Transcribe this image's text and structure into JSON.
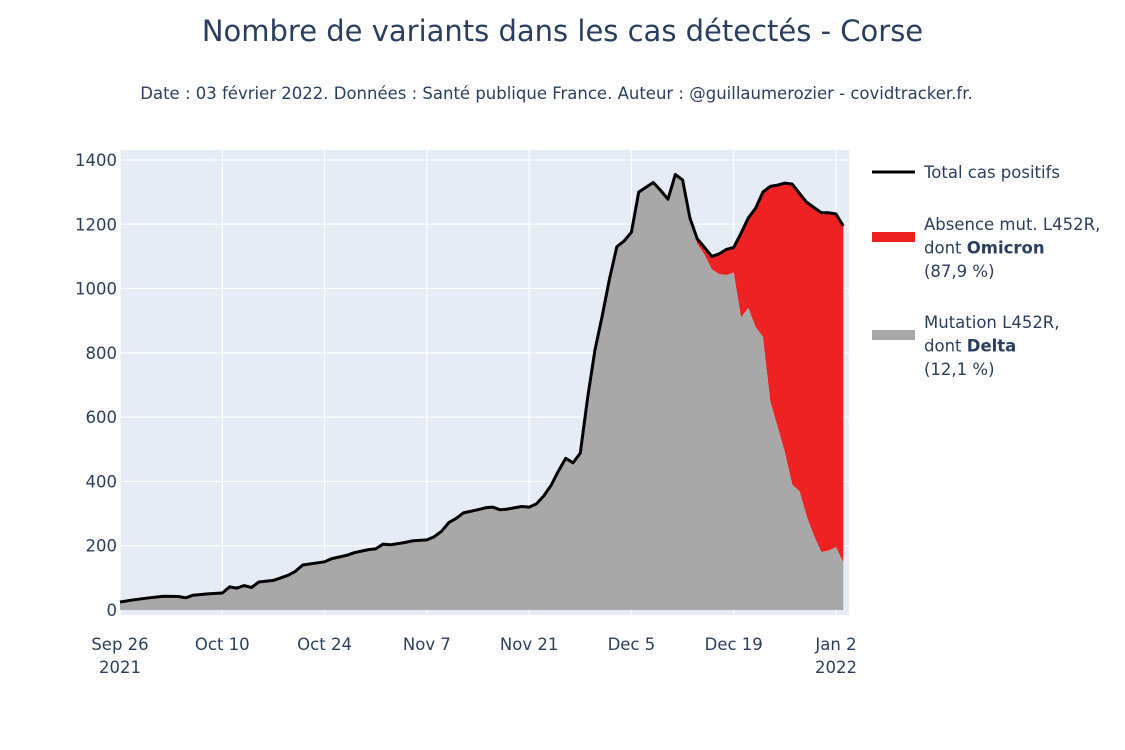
{
  "chart_data": {
    "type": "area",
    "title": "Nombre de variants dans les cas détectés - Corse",
    "subtitle": "Date : 03 février 2022. Données : Santé publique France. Auteur : @guillaumerozier - covidtracker.fr.",
    "xlabel": "",
    "ylabel": "",
    "ylim": [
      0,
      1400
    ],
    "yticks": [
      0,
      200,
      400,
      600,
      800,
      1000,
      1200,
      1400
    ],
    "xlim": [
      "2021-09-26",
      "2022-01-02"
    ],
    "xticks": [
      {
        "date": "2021-09-26",
        "label": "Sep 26",
        "year": "2021"
      },
      {
        "date": "2021-10-10",
        "label": "Oct 10",
        "year": ""
      },
      {
        "date": "2021-10-24",
        "label": "Oct 24",
        "year": ""
      },
      {
        "date": "2021-11-07",
        "label": "Nov 7",
        "year": ""
      },
      {
        "date": "2021-11-21",
        "label": "Nov 21",
        "year": ""
      },
      {
        "date": "2021-12-05",
        "label": "Dec 5",
        "year": ""
      },
      {
        "date": "2021-12-19",
        "label": "Dec 19",
        "year": ""
      },
      {
        "date": "2022-01-02",
        "label": "Jan 2",
        "year": "2022"
      }
    ],
    "grid": true,
    "legend_position": "right",
    "colors": {
      "plot_bg": "#e5ecf6",
      "grid": "#ffffff",
      "total": "#000000",
      "omicron": "#ee2222",
      "delta": "#a8a8a8"
    },
    "legend": [
      {
        "kind": "line",
        "color": "#000000",
        "lines": [
          [
            {
              "text": "Total cas positifs",
              "bold": false
            }
          ]
        ]
      },
      {
        "kind": "area",
        "color": "#ee2222",
        "lines": [
          [
            {
              "text": "Absence mut. L452R,",
              "bold": false
            }
          ],
          [
            {
              "text": "dont ",
              "bold": false
            },
            {
              "text": "Omicron",
              "bold": true
            }
          ],
          [
            {
              "text": " (87,9 %)",
              "bold": false
            }
          ]
        ]
      },
      {
        "kind": "area",
        "color": "#a8a8a8",
        "lines": [
          [
            {
              "text": "Mutation L452R,",
              "bold": false
            }
          ],
          [
            {
              "text": "dont ",
              "bold": false
            },
            {
              "text": "Delta",
              "bold": true
            }
          ],
          [
            {
              "text": " (12,1 %)",
              "bold": false
            }
          ]
        ]
      }
    ],
    "series": [
      {
        "name": "Total cas positifs",
        "points": [
          [
            "2021-09-26",
            25
          ],
          [
            "2021-09-28",
            32
          ],
          [
            "2021-09-30",
            38
          ],
          [
            "2021-10-02",
            43
          ],
          [
            "2021-10-04",
            42
          ],
          [
            "2021-10-05",
            38
          ],
          [
            "2021-10-06",
            46
          ],
          [
            "2021-10-08",
            50
          ],
          [
            "2021-10-10",
            53
          ],
          [
            "2021-10-11",
            72
          ],
          [
            "2021-10-12",
            68
          ],
          [
            "2021-10-13",
            76
          ],
          [
            "2021-10-14",
            70
          ],
          [
            "2021-10-15",
            87
          ],
          [
            "2021-10-17",
            92
          ],
          [
            "2021-10-19",
            108
          ],
          [
            "2021-10-20",
            120
          ],
          [
            "2021-10-21",
            140
          ],
          [
            "2021-10-24",
            150
          ],
          [
            "2021-10-25",
            160
          ],
          [
            "2021-10-27",
            170
          ],
          [
            "2021-10-28",
            178
          ],
          [
            "2021-10-30",
            188
          ],
          [
            "2021-10-31",
            190
          ],
          [
            "2021-11-01",
            205
          ],
          [
            "2021-11-02",
            203
          ],
          [
            "2021-11-04",
            210
          ],
          [
            "2021-11-05",
            215
          ],
          [
            "2021-11-07",
            218
          ],
          [
            "2021-11-08",
            228
          ],
          [
            "2021-11-09",
            245
          ],
          [
            "2021-11-10",
            272
          ],
          [
            "2021-11-11",
            285
          ],
          [
            "2021-11-12",
            302
          ],
          [
            "2021-11-14",
            312
          ],
          [
            "2021-11-15",
            318
          ],
          [
            "2021-11-16",
            320
          ],
          [
            "2021-11-17",
            312
          ],
          [
            "2021-11-18",
            314
          ],
          [
            "2021-11-20",
            322
          ],
          [
            "2021-11-21",
            320
          ],
          [
            "2021-11-22",
            330
          ],
          [
            "2021-11-23",
            355
          ],
          [
            "2021-11-24",
            388
          ],
          [
            "2021-11-25",
            432
          ],
          [
            "2021-11-26",
            472
          ],
          [
            "2021-11-27",
            458
          ],
          [
            "2021-11-28",
            488
          ],
          [
            "2021-11-29",
            660
          ],
          [
            "2021-11-30",
            808
          ],
          [
            "2021-12-01",
            915
          ],
          [
            "2021-12-02",
            1030
          ],
          [
            "2021-12-03",
            1130
          ],
          [
            "2021-12-04",
            1148
          ],
          [
            "2021-12-05",
            1175
          ],
          [
            "2021-12-06",
            1300
          ],
          [
            "2021-12-07",
            1315
          ],
          [
            "2021-12-08",
            1330
          ],
          [
            "2021-12-09",
            1305
          ],
          [
            "2021-12-10",
            1278
          ],
          [
            "2021-12-11",
            1355
          ],
          [
            "2021-12-12",
            1338
          ],
          [
            "2021-12-13",
            1220
          ],
          [
            "2021-12-14",
            1155
          ],
          [
            "2021-12-15",
            1128
          ],
          [
            "2021-12-16",
            1100
          ],
          [
            "2021-12-17",
            1108
          ],
          [
            "2021-12-18",
            1122
          ],
          [
            "2021-12-19",
            1128
          ],
          [
            "2021-12-20",
            1172
          ],
          [
            "2021-12-21",
            1220
          ],
          [
            "2021-12-22",
            1250
          ],
          [
            "2021-12-23",
            1300
          ],
          [
            "2021-12-24",
            1318
          ],
          [
            "2021-12-25",
            1322
          ],
          [
            "2021-12-26",
            1328
          ],
          [
            "2021-12-27",
            1325
          ],
          [
            "2021-12-28",
            1296
          ],
          [
            "2021-12-29",
            1268
          ],
          [
            "2021-12-30",
            1252
          ],
          [
            "2021-12-31",
            1236
          ],
          [
            "2022-01-01",
            1236
          ],
          [
            "2022-01-02",
            1232
          ],
          [
            "2022-01-03",
            1195
          ]
        ]
      },
      {
        "name": "Mutation L452R, dont Delta (12,1 %)",
        "points": [
          [
            "2021-12-13",
            1210
          ],
          [
            "2021-12-14",
            1140
          ],
          [
            "2021-12-15",
            1105
          ],
          [
            "2021-12-16",
            1060
          ],
          [
            "2021-12-17",
            1045
          ],
          [
            "2021-12-18",
            1042
          ],
          [
            "2021-12-19",
            1050
          ],
          [
            "2021-12-20",
            910
          ],
          [
            "2021-12-21",
            940
          ],
          [
            "2021-12-22",
            880
          ],
          [
            "2021-12-23",
            850
          ],
          [
            "2021-12-24",
            650
          ],
          [
            "2021-12-25",
            570
          ],
          [
            "2021-12-26",
            490
          ],
          [
            "2021-12-27",
            390
          ],
          [
            "2021-12-28",
            370
          ],
          [
            "2021-12-29",
            290
          ],
          [
            "2021-12-30",
            230
          ],
          [
            "2021-12-31",
            180
          ],
          [
            "2022-01-01",
            185
          ],
          [
            "2022-01-02",
            195
          ],
          [
            "2022-01-03",
            148
          ]
        ]
      }
    ]
  }
}
